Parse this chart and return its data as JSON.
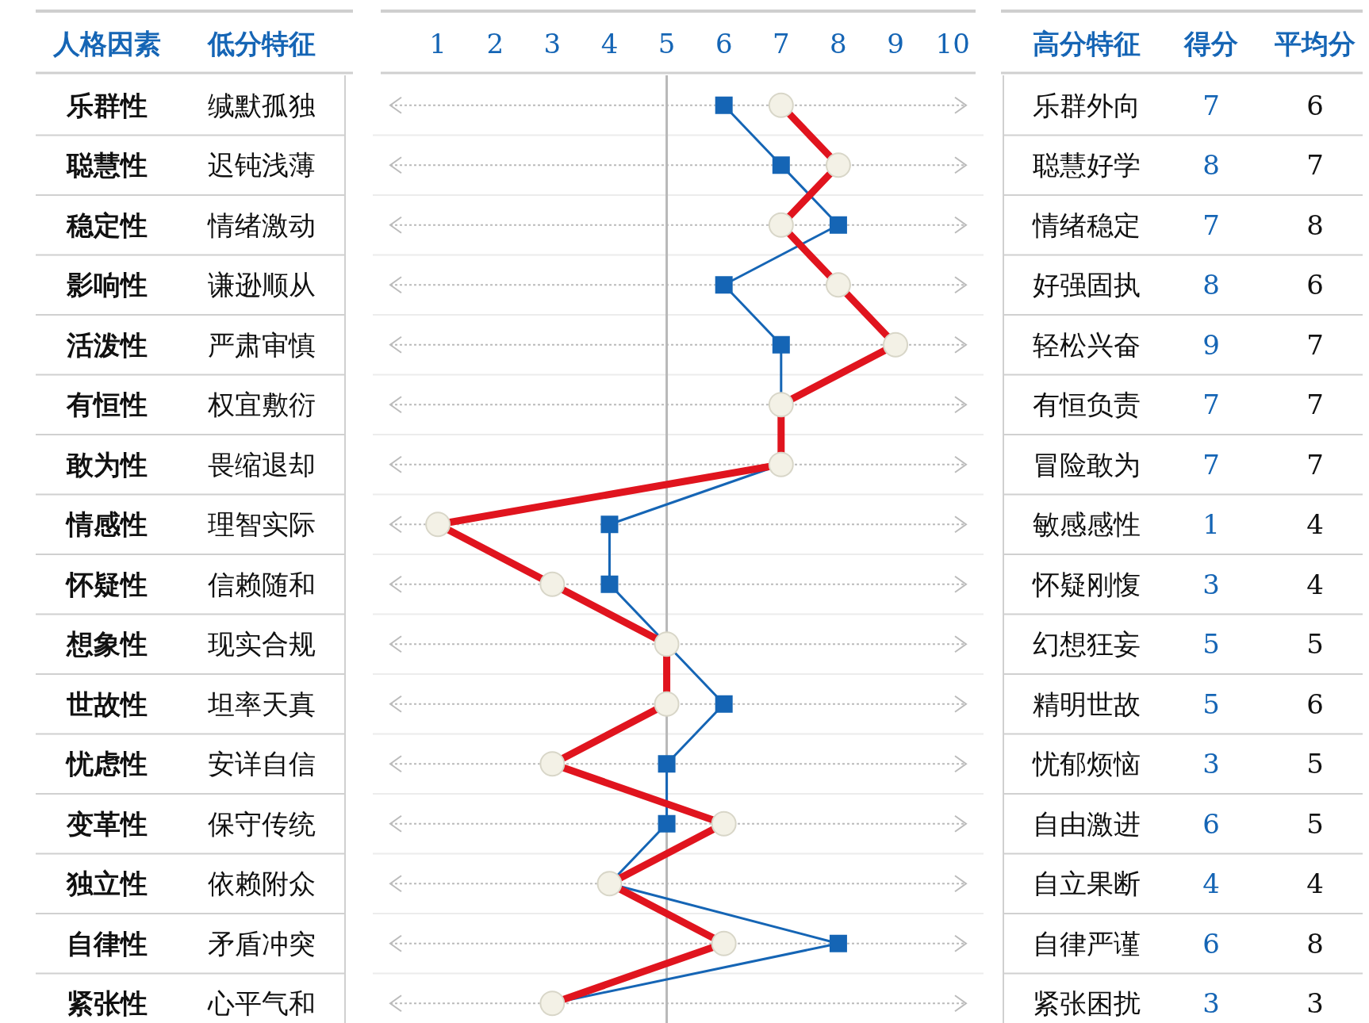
{
  "chart_data": {
    "type": "line",
    "orientation": "horizontal",
    "categories": [
      "乐群性",
      "聪慧性",
      "稳定性",
      "影响性",
      "活泼性",
      "有恒性",
      "敢为性",
      "情感性",
      "怀疑性",
      "想象性",
      "世故性",
      "忧虑性",
      "变革性",
      "独立性",
      "自律性",
      "紧张性"
    ],
    "series": [
      {
        "name": "得分",
        "color": "#e0141e",
        "marker": "circle",
        "values": [
          7,
          8,
          7,
          8,
          9,
          7,
          7,
          1,
          3,
          5,
          5,
          3,
          6,
          4,
          6,
          3
        ]
      },
      {
        "name": "平均分",
        "color": "#1565b5",
        "marker": "square",
        "values": [
          6,
          7,
          8,
          6,
          7,
          7,
          7,
          4,
          4,
          5,
          6,
          5,
          5,
          4,
          8,
          3
        ]
      }
    ],
    "x2lim": [
      0,
      10.4
    ],
    "x2ticks": [
      1,
      2,
      3,
      4,
      5,
      6,
      7,
      8,
      9,
      10
    ],
    "ref_lines": [
      {
        "axis": "x",
        "value": 5,
        "color": "#b8b8b8"
      }
    ],
    "grid": "y",
    "data_labels": true,
    "annotations": [
      "人格因素",
      "低分特征",
      "高分特征",
      "缄默孤独",
      "迟钝浅薄",
      "情绪激动",
      "谦逊顺从",
      "严肃审慎",
      "权宜敷衍",
      "畏缩退却",
      "理智实际",
      "信赖随和",
      "现实合规",
      "坦率天真",
      "安详自信",
      "保守传统",
      "依赖附众",
      "矛盾冲突",
      "心平气和",
      "乐群外向",
      "聪慧好学",
      "情绪稳定",
      "好强固执",
      "轻松兴奋",
      "有恒负责",
      "冒险敢为",
      "敏感感性",
      "怀疑刚愎",
      "幻想狂妄",
      "精明世故",
      "忧郁烦恼",
      "自由激进",
      "自立果断",
      "自律严谨",
      "紧张困扰"
    ]
  }
}
